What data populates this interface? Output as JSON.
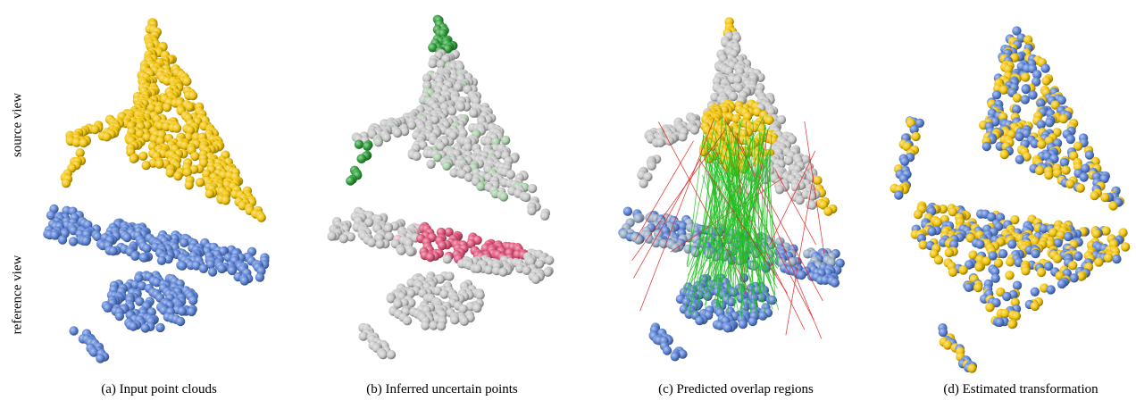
{
  "figure": {
    "row_labels": {
      "top": "source view",
      "bottom": "reference view"
    },
    "panels": [
      {
        "caption": "(a) Input point clouds"
      },
      {
        "caption": "(b) Inferred uncertain points"
      },
      {
        "caption": "(c) Predicted overlap regions"
      },
      {
        "caption": "(d) Estimated transformation"
      }
    ],
    "colors": {
      "source": "#f2c40a",
      "reference": "#5b83d6",
      "neutral": "#c8c8c8",
      "uncertain_source": "#2e9e3a",
      "uncertain_reference": "#e0557a",
      "correct_match": "#22c022",
      "wrong_match": "#e02020"
    }
  }
}
